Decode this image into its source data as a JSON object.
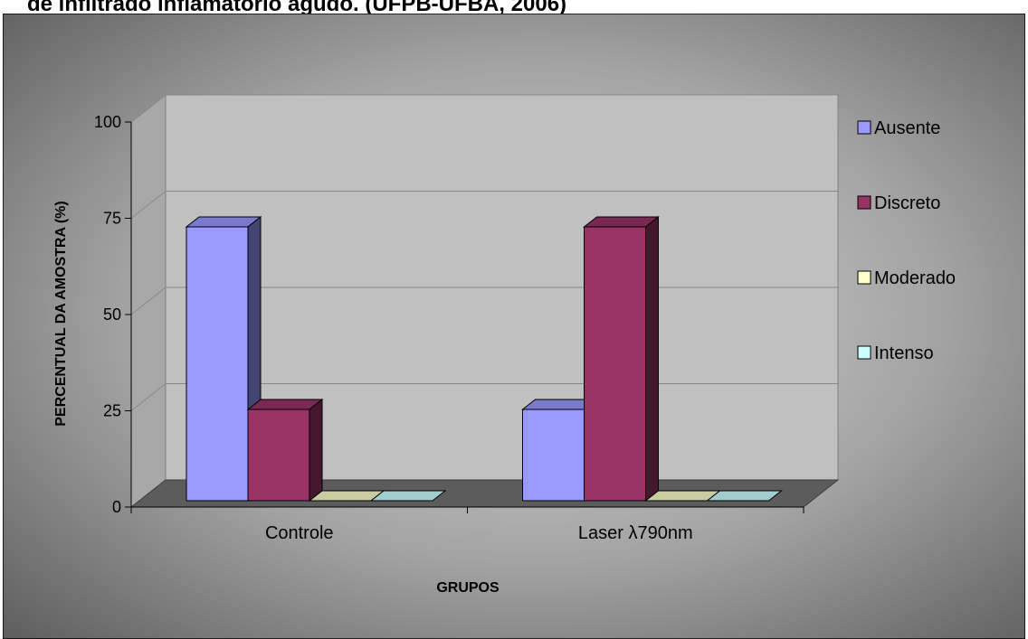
{
  "page": {
    "caption": "de infiltrado inflamatório agudo. (UFPB-UFBA, 2006)"
  },
  "chart_data": {
    "type": "bar",
    "title": "",
    "categories": [
      "Controle",
      "Laser λ790nm"
    ],
    "series": [
      {
        "name": "Ausente",
        "values": [
          75,
          25
        ],
        "color": "#9999ff"
      },
      {
        "name": "Discreto",
        "values": [
          25,
          75
        ],
        "color": "#993366"
      },
      {
        "name": "Moderado",
        "values": [
          0,
          0
        ],
        "color": "#ffffcc"
      },
      {
        "name": "Intenso",
        "values": [
          0,
          0
        ],
        "color": "#ccffff"
      }
    ],
    "xlabel": "GRUPOS",
    "ylabel": "PERCENTUAL DA AMOSTRA (%)",
    "ylim": [
      0,
      100
    ],
    "yticks": [
      0,
      25,
      50,
      75,
      100
    ],
    "grid": true,
    "legend_position": "right",
    "style": "3d-clustered-column",
    "background": "dark-gray-gradient",
    "plot_wall_color": "#c0c0c0"
  }
}
